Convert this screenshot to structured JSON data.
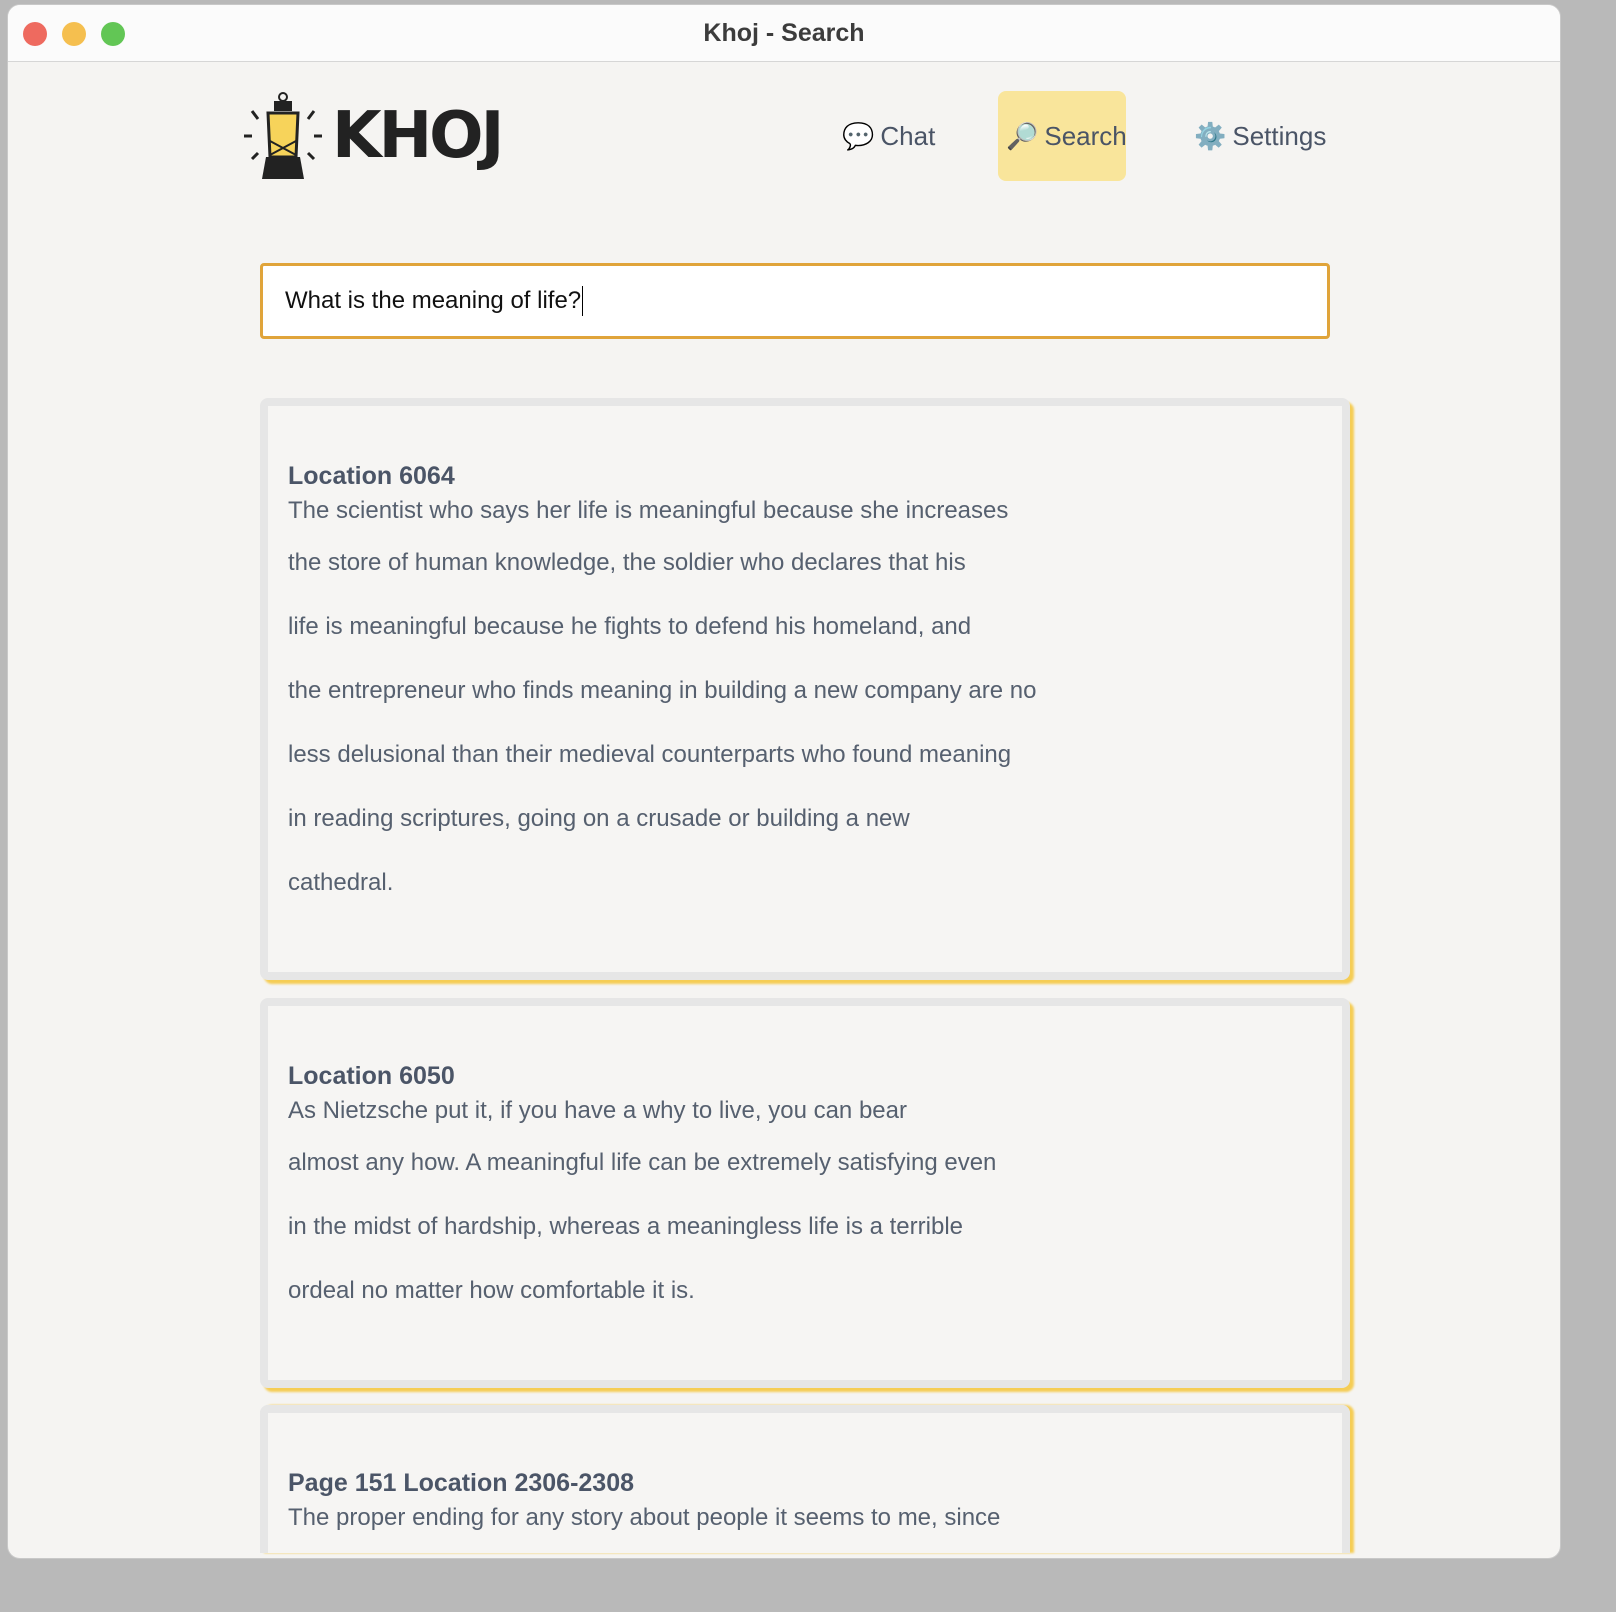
{
  "window": {
    "title": "Khoj - Search",
    "traffic_lights": {
      "close": "#ee6a5f",
      "minimize": "#f5bf4f",
      "zoom": "#62c655"
    }
  },
  "logo": {
    "text": "KHOJ",
    "icon": "lantern-icon"
  },
  "nav": {
    "items": [
      {
        "label": "Chat",
        "icon": "speech-bubble-icon",
        "active": false
      },
      {
        "label": "Search",
        "icon": "magnifier-icon",
        "active": true
      },
      {
        "label": "Settings",
        "icon": "gear-icon",
        "active": false
      }
    ]
  },
  "search": {
    "value": "What is the meaning of life?"
  },
  "results": [
    {
      "heading": "Location 6064",
      "lines": [
        "The scientist who says her life is meaningful because she increases",
        "the store of human knowledge, the soldier who declares that his",
        "life is meaningful because he fights to defend his homeland, and",
        "the entrepreneur who finds meaning in building a new company are no",
        "less delusional than their medieval counterparts who found meaning",
        "in reading scriptures, going on a crusade or building a new",
        "cathedral."
      ]
    },
    {
      "heading": "Location 6050",
      "lines": [
        "As Nietzsche put it, if you have a why to live, you can bear",
        "almost any how. A meaningful life can be extremely satisfying even",
        "in the midst of hardship, whereas a meaningless life is a terrible",
        "ordeal no matter how comfortable it is."
      ]
    },
    {
      "heading": "Page 151 Location 2306-2308",
      "lines": [
        "The proper ending for any story about people it seems to me, since"
      ]
    }
  ],
  "colors": {
    "accent": "#f9e59b",
    "search_border": "#e0a43a",
    "card_shadow": "#f5cd55"
  }
}
